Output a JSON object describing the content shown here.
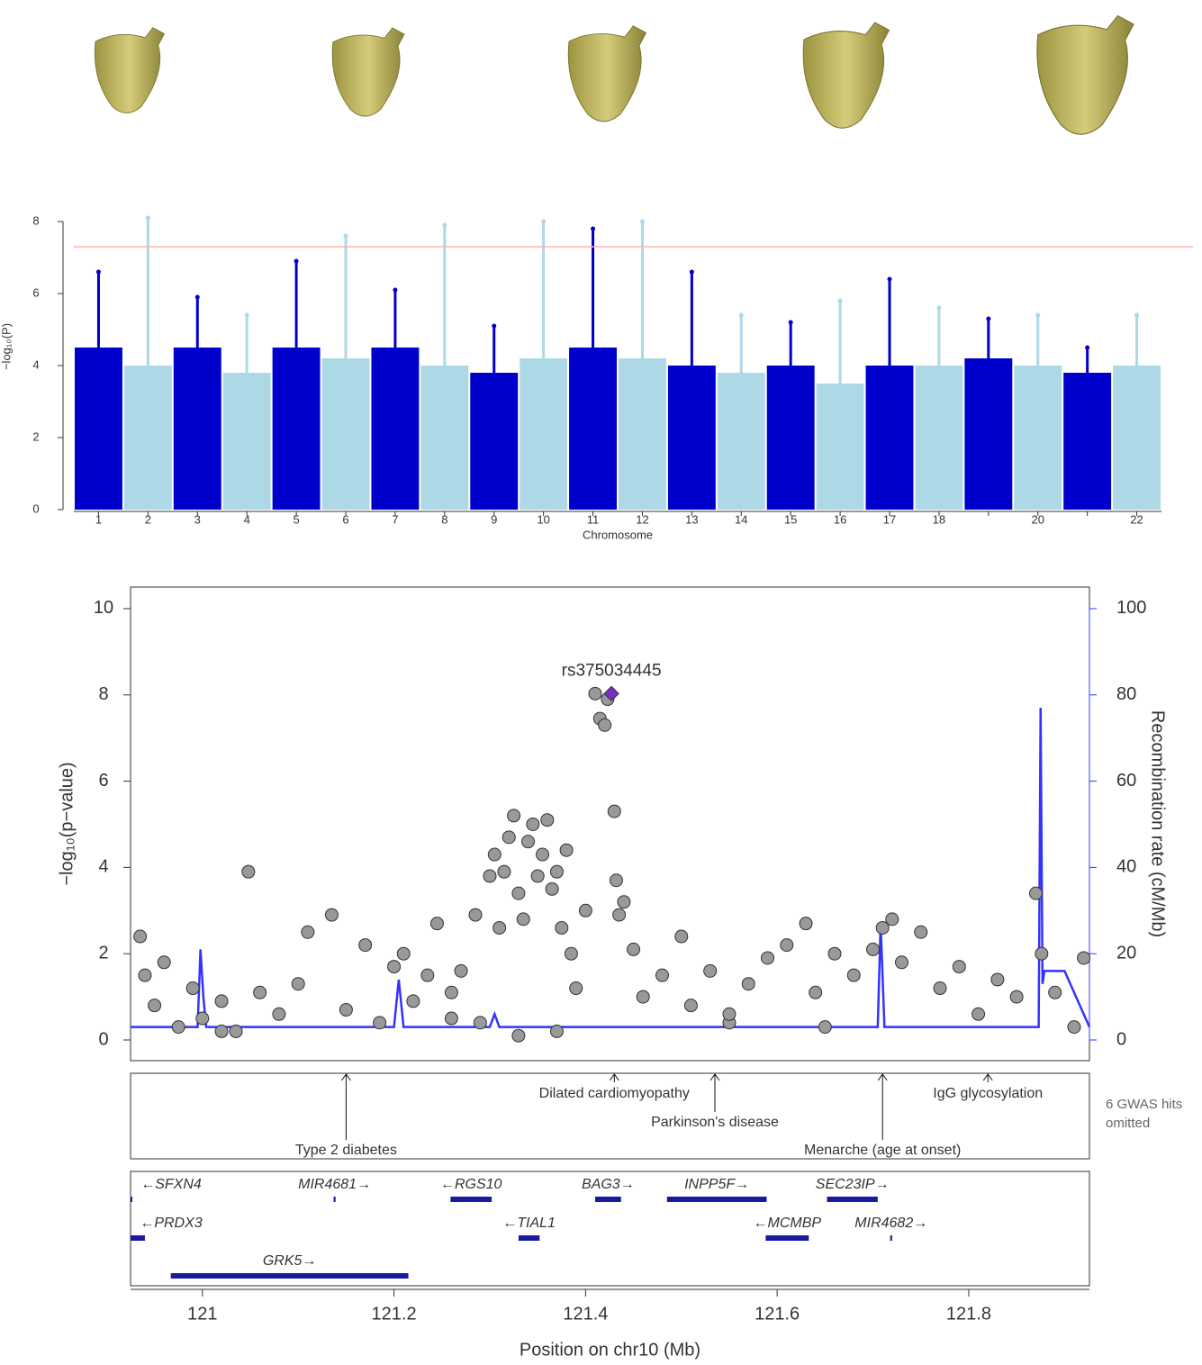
{
  "chart_data": [
    {
      "type": "manhattan",
      "y_label": "−log₁₀(P)",
      "x_label": "Chromosome",
      "categories": [
        "1",
        "2",
        "3",
        "4",
        "5",
        "6",
        "7",
        "8",
        "9",
        "10",
        "11",
        "12",
        "13",
        "14",
        "15",
        "16",
        "17",
        "18",
        null,
        "20",
        null,
        "22"
      ],
      "values": [
        4.5,
        4.0,
        4.5,
        3.8,
        4.5,
        4.2,
        4.5,
        4.0,
        3.8,
        4.2,
        4.5,
        4.2,
        4.0,
        3.8,
        4.0,
        3.5,
        4.0,
        4.0,
        4.2,
        4.0,
        3.8,
        4.0
      ],
      "peak_values": [
        6.6,
        8.1,
        5.9,
        5.4,
        6.9,
        7.6,
        6.1,
        7.9,
        5.1,
        8.0,
        7.8,
        8.0,
        6.6,
        5.4,
        5.2,
        5.8,
        6.4,
        5.6,
        5.3,
        5.4,
        4.5,
        5.4
      ],
      "colors": [
        "#0000cd",
        "#add8e6"
      ],
      "ylim": [
        0,
        8.2
      ],
      "yticks": [
        0,
        2,
        4,
        6,
        8
      ],
      "threshold": 7.3,
      "threshold_color": "#ffb3b3"
    },
    {
      "type": "locuszoom",
      "y_label": "−log₁₀(p−value)",
      "y2_label": "Recombination rate (cM/Mb)",
      "x_label": "Position on chr10 (Mb)",
      "xlim": [
        120.925,
        121.926
      ],
      "xticks": [
        121,
        121.2,
        121.4,
        121.6,
        121.8
      ],
      "ylim": [
        -0.48,
        10.5
      ],
      "yticks": [
        0,
        2,
        4,
        6,
        8,
        10
      ],
      "y2lim": [
        -4.8,
        105
      ],
      "y2ticks": [
        0,
        20,
        40,
        60,
        80,
        100
      ],
      "points": {
        "color": "#999999",
        "x": [
          120.935,
          120.94,
          120.95,
          120.96,
          120.975,
          120.99,
          121.0,
          121.02,
          121.035,
          121.048,
          121.06,
          121.08,
          121.1,
          121.11,
          121.135,
          121.15,
          121.17,
          121.185,
          121.2,
          121.21,
          121.22,
          121.235,
          121.245,
          121.26,
          121.27,
          121.285,
          121.3,
          121.305,
          121.31,
          121.315,
          121.32,
          121.325,
          121.33,
          121.335,
          121.34,
          121.345,
          121.35,
          121.355,
          121.36,
          121.365,
          121.37,
          121.375,
          121.38,
          121.385,
          121.39,
          121.4,
          121.41,
          121.415,
          121.42,
          121.423,
          121.43,
          121.432,
          121.435,
          121.44,
          121.45,
          121.46,
          121.48,
          121.5,
          121.51,
          121.53,
          121.55,
          121.57,
          121.59,
          121.61,
          121.63,
          121.64,
          121.66,
          121.68,
          121.7,
          121.71,
          121.72,
          121.73,
          121.75,
          121.77,
          121.79,
          121.81,
          121.83,
          121.85,
          121.87,
          121.876,
          121.89,
          121.91,
          121.92,
          121.37,
          121.33,
          121.29,
          121.26,
          121.55,
          121.65,
          121.02
        ],
        "values": [
          2.4,
          1.5,
          0.8,
          1.8,
          0.3,
          1.2,
          0.5,
          0.9,
          0.2,
          3.9,
          1.1,
          0.6,
          1.3,
          2.5,
          2.9,
          0.7,
          2.2,
          0.4,
          1.7,
          2.0,
          0.9,
          1.5,
          2.7,
          0.5,
          1.6,
          2.9,
          3.8,
          4.3,
          2.6,
          3.9,
          4.7,
          5.2,
          3.4,
          2.8,
          4.6,
          5.0,
          3.8,
          4.3,
          5.1,
          3.5,
          3.9,
          2.6,
          4.4,
          2.0,
          1.2,
          3.0,
          8.03,
          7.45,
          7.3,
          7.9,
          5.3,
          3.7,
          2.9,
          3.2,
          2.1,
          1.0,
          1.5,
          2.4,
          0.8,
          1.6,
          0.4,
          1.3,
          1.9,
          2.2,
          2.7,
          1.1,
          2.0,
          1.5,
          2.1,
          2.6,
          2.8,
          1.8,
          2.5,
          1.2,
          1.7,
          0.6,
          1.4,
          1.0,
          3.4,
          2.0,
          1.1,
          0.3,
          1.9,
          0.2,
          0.1,
          0.4,
          1.1,
          0.6,
          0.3,
          0.2
        ]
      },
      "lead": {
        "label": "rs375034445",
        "x": 121.427,
        "value": 8.03,
        "color": "#7b2fbe"
      },
      "recombination": {
        "axis": "y2",
        "color": "#3333ff",
        "x": [
          120.925,
          120.995,
          120.998,
          121.001,
          121.004,
          121.2,
          121.205,
          121.21,
          121.3,
          121.305,
          121.31,
          121.55,
          121.705,
          121.708,
          121.712,
          121.873,
          121.875,
          121.877,
          121.879,
          121.9,
          121.926
        ],
        "values": [
          3,
          3,
          21,
          10,
          3,
          3,
          14,
          3,
          3,
          6,
          3,
          3,
          3,
          27,
          3,
          3,
          77,
          13,
          16,
          16,
          3
        ]
      },
      "gwas": {
        "hits": [
          {
            "label": "Type 2 diabetes",
            "x": 121.15
          },
          {
            "label": "Dilated cardiomyopathy",
            "x": 121.43
          },
          {
            "label": "Parkinson's disease",
            "x": 121.535
          },
          {
            "label": "Menarche (age at onset)",
            "x": 121.71
          },
          {
            "label": "IgG glycosylation",
            "x": 121.82
          }
        ],
        "note": "6 GWAS hits omitted"
      },
      "genes": [
        {
          "label": "←SFXN4",
          "start": 120.925,
          "end": 120.926
        },
        {
          "label": "MIR4681→",
          "start": 121.137,
          "end": 121.139
        },
        {
          "label": "←RGS10",
          "start": 121.259,
          "end": 121.302
        },
        {
          "label": "BAG3→",
          "start": 121.41,
          "end": 121.437
        },
        {
          "label": "INPP5F→",
          "start": 121.485,
          "end": 121.589
        },
        {
          "label": "SEC23IP→",
          "start": 121.652,
          "end": 121.705
        },
        {
          "label": "←PRDX3",
          "start": 120.925,
          "end": 120.94
        },
        {
          "label": "←TIAL1",
          "start": 121.33,
          "end": 121.352
        },
        {
          "label": "←MCMBP",
          "start": 121.588,
          "end": 121.633
        },
        {
          "label": "MIR4682→",
          "start": 121.718,
          "end": 121.72
        },
        {
          "label": "GRK5→",
          "start": 120.967,
          "end": 121.215
        }
      ]
    }
  ]
}
